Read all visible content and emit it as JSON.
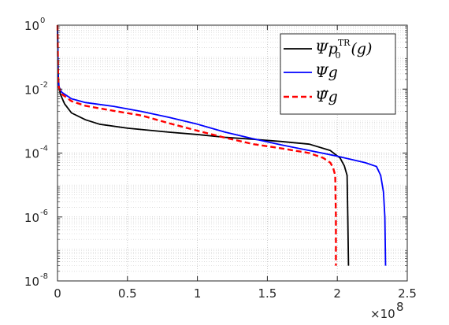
{
  "chart_data": {
    "type": "line",
    "title": "",
    "xlabel": "",
    "ylabel": "",
    "x_multiplier": "×10",
    "x_multiplier_exp": "8",
    "xlim": [
      0,
      2.5
    ],
    "ylim": [
      1e-08,
      1
    ],
    "yscale": "log",
    "grid": true,
    "minor_grid": true,
    "legend_position": "top-right",
    "x_ticks": [
      {
        "value": 0,
        "label": "0"
      },
      {
        "value": 0.5,
        "label": "0.5"
      },
      {
        "value": 1,
        "label": "1"
      },
      {
        "value": 1.5,
        "label": "1.5"
      },
      {
        "value": 2,
        "label": "2"
      },
      {
        "value": 2.5,
        "label": "2.5"
      }
    ],
    "y_ticks": [
      {
        "value": 1,
        "base": "10",
        "exp": "0"
      },
      {
        "value": 0.01,
        "base": "10",
        "exp": "-2"
      },
      {
        "value": 0.0001,
        "base": "10",
        "exp": "-4"
      },
      {
        "value": 1e-06,
        "base": "10",
        "exp": "-6"
      },
      {
        "value": 1e-08,
        "base": "10",
        "exp": "-8"
      }
    ],
    "series": [
      {
        "name": "Ψ p0TR(g)",
        "legend_main": "Ψp",
        "legend_sub": "0",
        "legend_sup": "TR",
        "legend_tail": "(g)",
        "color": "#000000",
        "dash": "solid",
        "points": [
          [
            0.0,
            1.0
          ],
          [
            0.005,
            0.03
          ],
          [
            0.01,
            0.013
          ],
          [
            0.02,
            0.007
          ],
          [
            0.05,
            0.0035
          ],
          [
            0.1,
            0.0018
          ],
          [
            0.2,
            0.0011
          ],
          [
            0.3,
            0.0008
          ],
          [
            0.5,
            0.0006
          ],
          [
            0.8,
            0.00045
          ],
          [
            1.0,
            0.00038
          ],
          [
            1.2,
            0.00031
          ],
          [
            1.4,
            0.00027
          ],
          [
            1.6,
            0.00023
          ],
          [
            1.8,
            0.00019
          ],
          [
            1.95,
            0.00012
          ],
          [
            2.02,
            7e-05
          ],
          [
            2.05,
            4e-05
          ],
          [
            2.07,
            2e-05
          ],
          [
            2.075,
            1e-06
          ],
          [
            2.08,
            3e-08
          ]
        ]
      },
      {
        "name": "Ψ g",
        "legend_main": "Ψg",
        "legend_sub": "",
        "legend_sup": "",
        "legend_tail": "",
        "color": "#0000ff",
        "dash": "solid",
        "points": [
          [
            0.0,
            1.0
          ],
          [
            0.005,
            0.02
          ],
          [
            0.01,
            0.012
          ],
          [
            0.03,
            0.008
          ],
          [
            0.1,
            0.005
          ],
          [
            0.2,
            0.0038
          ],
          [
            0.4,
            0.0029
          ],
          [
            0.6,
            0.002
          ],
          [
            0.8,
            0.0013
          ],
          [
            1.0,
            0.0008
          ],
          [
            1.2,
            0.00045
          ],
          [
            1.4,
            0.00028
          ],
          [
            1.6,
            0.00018
          ],
          [
            1.8,
            0.00012
          ],
          [
            2.0,
            8e-05
          ],
          [
            2.2,
            5e-05
          ],
          [
            2.28,
            3.8e-05
          ],
          [
            2.31,
            2e-05
          ],
          [
            2.33,
            6e-06
          ],
          [
            2.34,
            1e-06
          ],
          [
            2.345,
            3e-08
          ]
        ]
      },
      {
        "name": "Ψ̃ g",
        "legend_main": "Ψ̃g",
        "legend_sub": "",
        "legend_sup": "",
        "legend_tail": "",
        "color": "#ff0000",
        "dash": "dashed",
        "points": [
          [
            0.0,
            1.0
          ],
          [
            0.005,
            0.02
          ],
          [
            0.01,
            0.011
          ],
          [
            0.03,
            0.007
          ],
          [
            0.1,
            0.0042
          ],
          [
            0.2,
            0.003
          ],
          [
            0.4,
            0.0021
          ],
          [
            0.6,
            0.0015
          ],
          [
            0.8,
            0.00085
          ],
          [
            1.0,
            0.0005
          ],
          [
            1.2,
            0.0003
          ],
          [
            1.4,
            0.00019
          ],
          [
            1.6,
            0.00014
          ],
          [
            1.8,
            0.0001
          ],
          [
            1.9,
            7e-05
          ],
          [
            1.95,
            5e-05
          ],
          [
            1.97,
            3.5e-05
          ],
          [
            1.985,
            2e-05
          ],
          [
            1.99,
            1e-06
          ],
          [
            1.99,
            3e-08
          ]
        ]
      }
    ]
  }
}
